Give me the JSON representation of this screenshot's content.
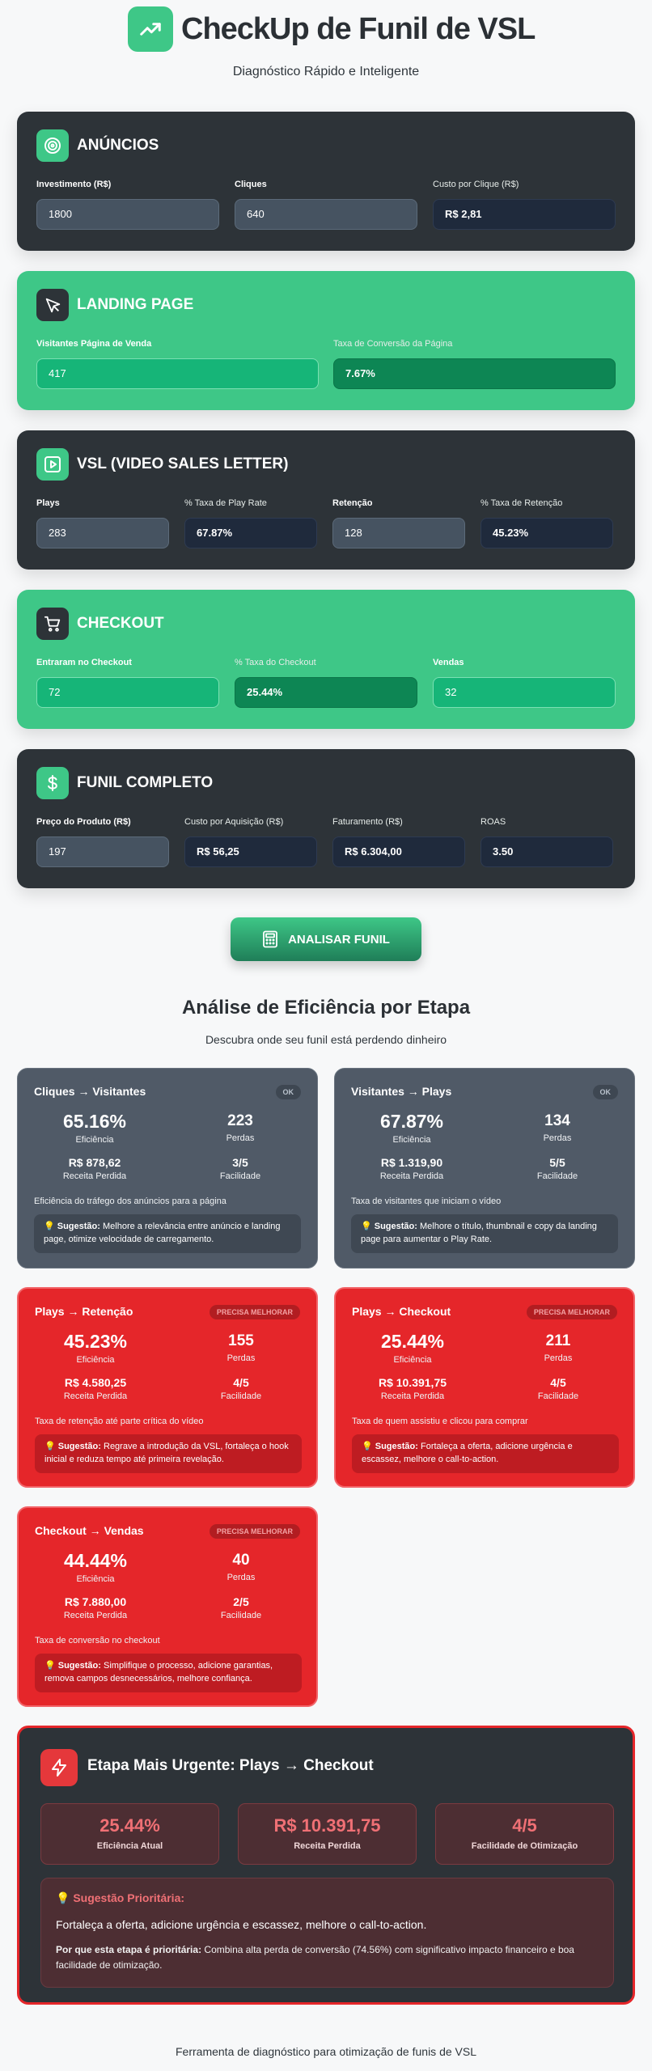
{
  "header": {
    "title": "CheckUp de Funil de VSL",
    "subtitle": "Diagnóstico Rápido e Inteligente"
  },
  "cards": {
    "anuncios": {
      "title": "ANÚNCIOS",
      "fields": [
        {
          "label": "Investimento (R$)",
          "value": "1800"
        },
        {
          "label": "Cliques",
          "value": "640"
        },
        {
          "label": "Custo por Clique (R$)",
          "value": "R$ 2,81"
        }
      ]
    },
    "landing": {
      "title": "LANDING PAGE",
      "fields": [
        {
          "label": "Visitantes Página de Venda",
          "value": "417"
        },
        {
          "label": "Taxa de Conversão da Página",
          "value": "7.67%"
        }
      ]
    },
    "vsl": {
      "title": "VSL (VIDEO SALES LETTER)",
      "fields": [
        {
          "label": "Plays",
          "value": "283"
        },
        {
          "label": "% Taxa de Play Rate",
          "value": "67.87%"
        },
        {
          "label": "Retenção",
          "value": "128"
        },
        {
          "label": "% Taxa de Retenção",
          "value": "45.23%"
        }
      ]
    },
    "checkout": {
      "title": "CHECKOUT",
      "fields": [
        {
          "label": "Entraram no Checkout",
          "value": "72"
        },
        {
          "label": "% Taxa do Checkout",
          "value": "25.44%"
        },
        {
          "label": "Vendas",
          "value": "32"
        }
      ]
    },
    "funil": {
      "title": "FUNIL COMPLETO",
      "fields": [
        {
          "label": "Preço do Produto (R$)",
          "value": "197"
        },
        {
          "label": "Custo por Aquisição (R$)",
          "value": "R$ 56,25"
        },
        {
          "label": "Faturamento (R$)",
          "value": "R$ 6.304,00"
        },
        {
          "label": "ROAS",
          "value": "3.50"
        }
      ]
    }
  },
  "analyze_button": "ANALISAR FUNIL",
  "analysis": {
    "title": "Análise de Eficiência por Etapa",
    "subtitle": "Descubra onde seu funil está perdendo dinheiro",
    "labels": {
      "eficiencia": "Eficiência",
      "perdas": "Perdas",
      "receita": "Receita Perdida",
      "facilidade": "Facilidade",
      "sugestao": "💡 Sugestão:"
    },
    "stages": [
      {
        "title": "Cliques → Visitantes",
        "badge": "OK",
        "eficiencia": "65.16%",
        "perdas": "223",
        "receita": "R$ 878,62",
        "facilidade": "3/5",
        "desc": "Eficiência do tráfego dos anúncios para a página",
        "sugestao": "Melhore a relevância entre anúncio e landing page, otimize velocidade de carregamento."
      },
      {
        "title": "Visitantes → Plays",
        "badge": "OK",
        "eficiencia": "67.87%",
        "perdas": "134",
        "receita": "R$ 1.319,90",
        "facilidade": "5/5",
        "desc": "Taxa de visitantes que iniciam o vídeo",
        "sugestao": "Melhore o título, thumbnail e copy da landing page para aumentar o Play Rate."
      },
      {
        "title": "Plays → Retenção",
        "badge": "PRECISA MELHORAR",
        "eficiencia": "45.23%",
        "perdas": "155",
        "receita": "R$ 4.580,25",
        "facilidade": "4/5",
        "desc": "Taxa de retenção até parte crítica do vídeo",
        "sugestao": "Regrave a introdução da VSL, fortaleça o hook inicial e reduza tempo até primeira revelação."
      },
      {
        "title": "Plays → Checkout",
        "badge": "PRECISA MELHORAR",
        "eficiencia": "25.44%",
        "perdas": "211",
        "receita": "R$ 10.391,75",
        "facilidade": "4/5",
        "desc": "Taxa de quem assistiu e clicou para comprar",
        "sugestao": "Fortaleça a oferta, adicione urgência e escassez, melhore o call-to-action."
      },
      {
        "title": "Checkout → Vendas",
        "badge": "PRECISA MELHORAR",
        "eficiencia": "44.44%",
        "perdas": "40",
        "receita": "R$ 7.880,00",
        "facilidade": "2/5",
        "desc": "Taxa de conversão no checkout",
        "sugestao": "Simplifique o processo, adicione garantias, remova campos desnecessários, melhore confiança."
      }
    ]
  },
  "urgent": {
    "title": "Etapa Mais Urgente: Plays → Checkout",
    "metrics": [
      {
        "value": "25.44%",
        "label": "Eficiência Atual"
      },
      {
        "value": "R$ 10.391,75",
        "label": "Receita Perdida"
      },
      {
        "value": "4/5",
        "label": "Facilidade de Otimização"
      }
    ],
    "sug_heading": "💡 Sugestão Prioritária:",
    "sug_text": "Fortaleça a oferta, adicione urgência e escassez, melhore o call-to-action.",
    "why_label": "Por que esta etapa é prioritária:",
    "why_text": " Combina alta perda de conversão (74.56%) com significativo impacto financeiro e boa facilidade de otimização."
  },
  "footer": "Ferramenta de diagnóstico para otimização de funis de VSL",
  "colors": {
    "green": "#3ec787",
    "dark": "#2d3338",
    "red": "#e5262a",
    "gray": "#505a67"
  }
}
